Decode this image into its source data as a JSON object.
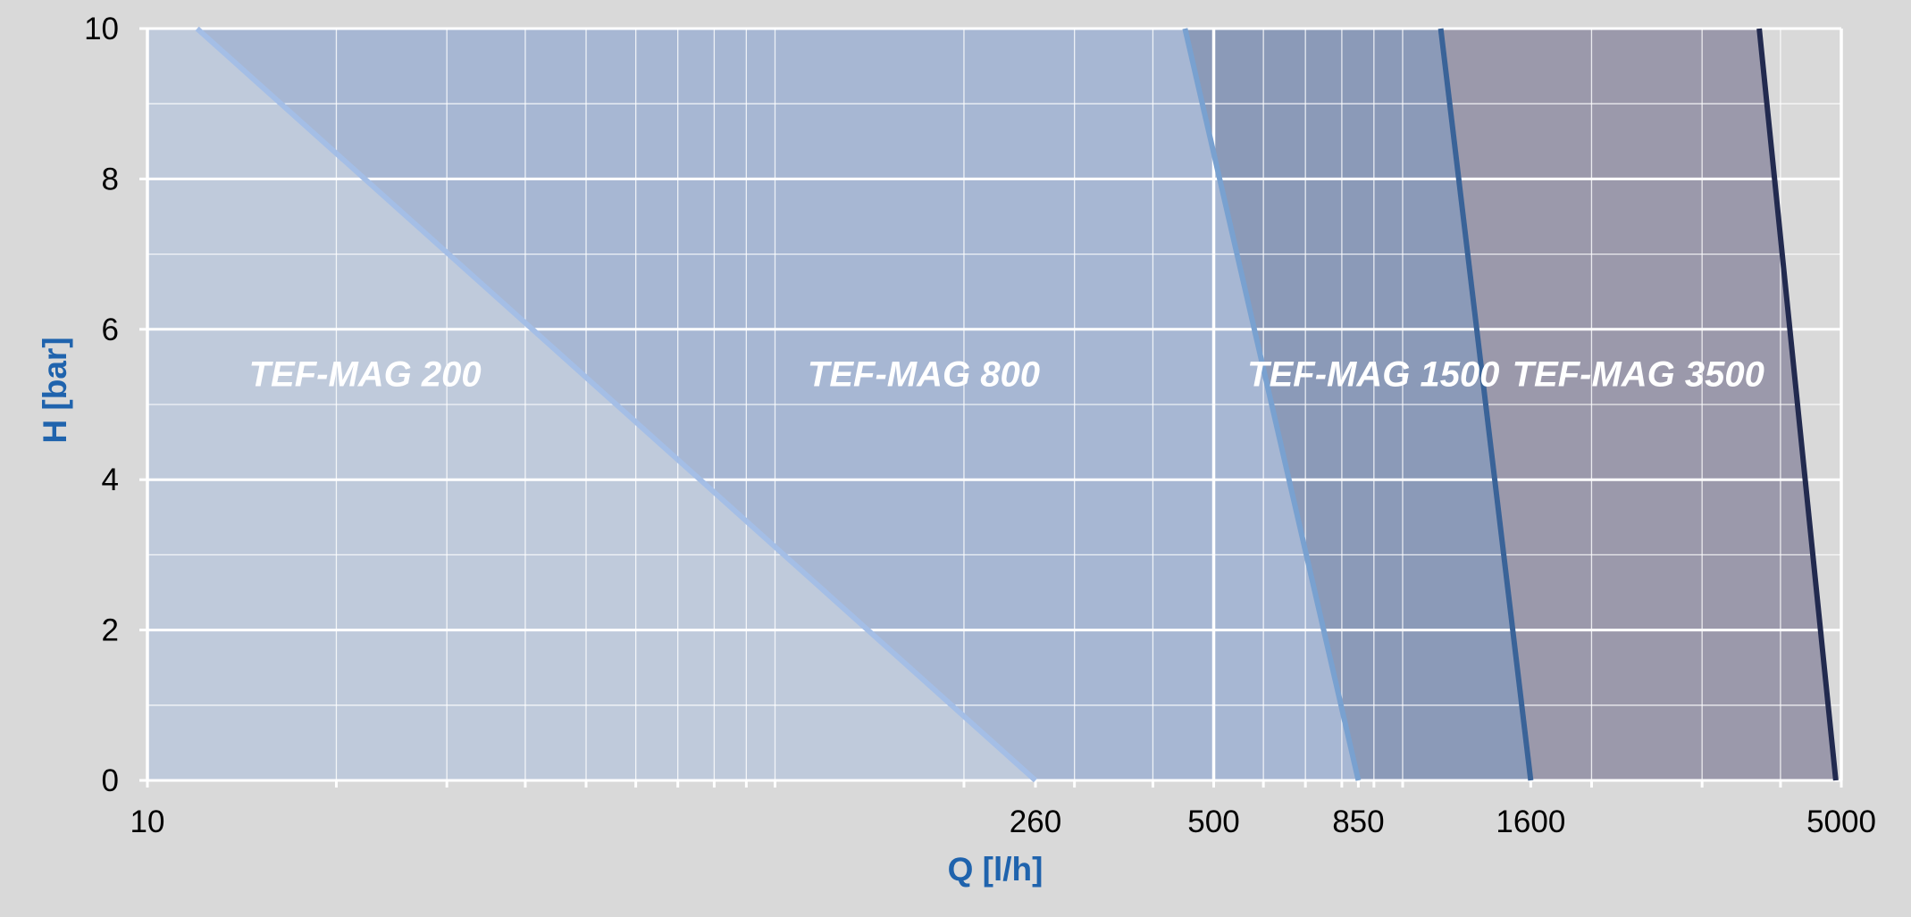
{
  "chart_data": {
    "type": "area",
    "title": "",
    "xlabel": "Q [l/h]",
    "ylabel": "H [bar]",
    "x_scale": "log",
    "xlim": [
      10,
      5000
    ],
    "ylim": [
      0,
      10
    ],
    "x_ticks": [
      10,
      260,
      500,
      850,
      1600,
      5000
    ],
    "x_tick_labels": [
      "10",
      "260",
      "500",
      "850",
      "1600",
      "5000"
    ],
    "y_ticks": [
      0,
      2,
      4,
      6,
      8,
      10
    ],
    "y_tick_labels": [
      "0",
      "2",
      "4",
      "6",
      "8",
      "10"
    ],
    "x_minor_gridlines": [
      20,
      30,
      40,
      50,
      60,
      70,
      80,
      90,
      100,
      200,
      300,
      400,
      600,
      700,
      800,
      900,
      1000,
      2000,
      3000,
      4000
    ],
    "y_minor_gridlines": [
      1,
      3,
      5,
      7,
      9
    ],
    "grid": true,
    "series": [
      {
        "name": "TEF-MAG 3500",
        "points": [
          {
            "x": 3700,
            "y": 10
          },
          {
            "x": 4900,
            "y": 0
          }
        ],
        "fill_color": "#9b99ab",
        "line_color": "#222a4f"
      },
      {
        "name": "TEF-MAG 1500",
        "points": [
          {
            "x": 1150,
            "y": 10
          },
          {
            "x": 1600,
            "y": 0
          }
        ],
        "fill_color": "#8b9ab8",
        "line_color": "#3a6398"
      },
      {
        "name": "TEF-MAG 800",
        "points": [
          {
            "x": 450,
            "y": 10
          },
          {
            "x": 850,
            "y": 0
          }
        ],
        "fill_color": "#a7b7d3",
        "line_color": "#79a1d0"
      },
      {
        "name": "TEF-MAG 200",
        "points": [
          {
            "x": 12,
            "y": 10
          },
          {
            "x": 260,
            "y": 0
          }
        ],
        "fill_color": "#bfcadb",
        "line_color": "#a4bee6"
      }
    ],
    "label_color": "#ffffff",
    "axis_title_color": "#1f63ad",
    "plot_background": "#d9d9d9"
  }
}
